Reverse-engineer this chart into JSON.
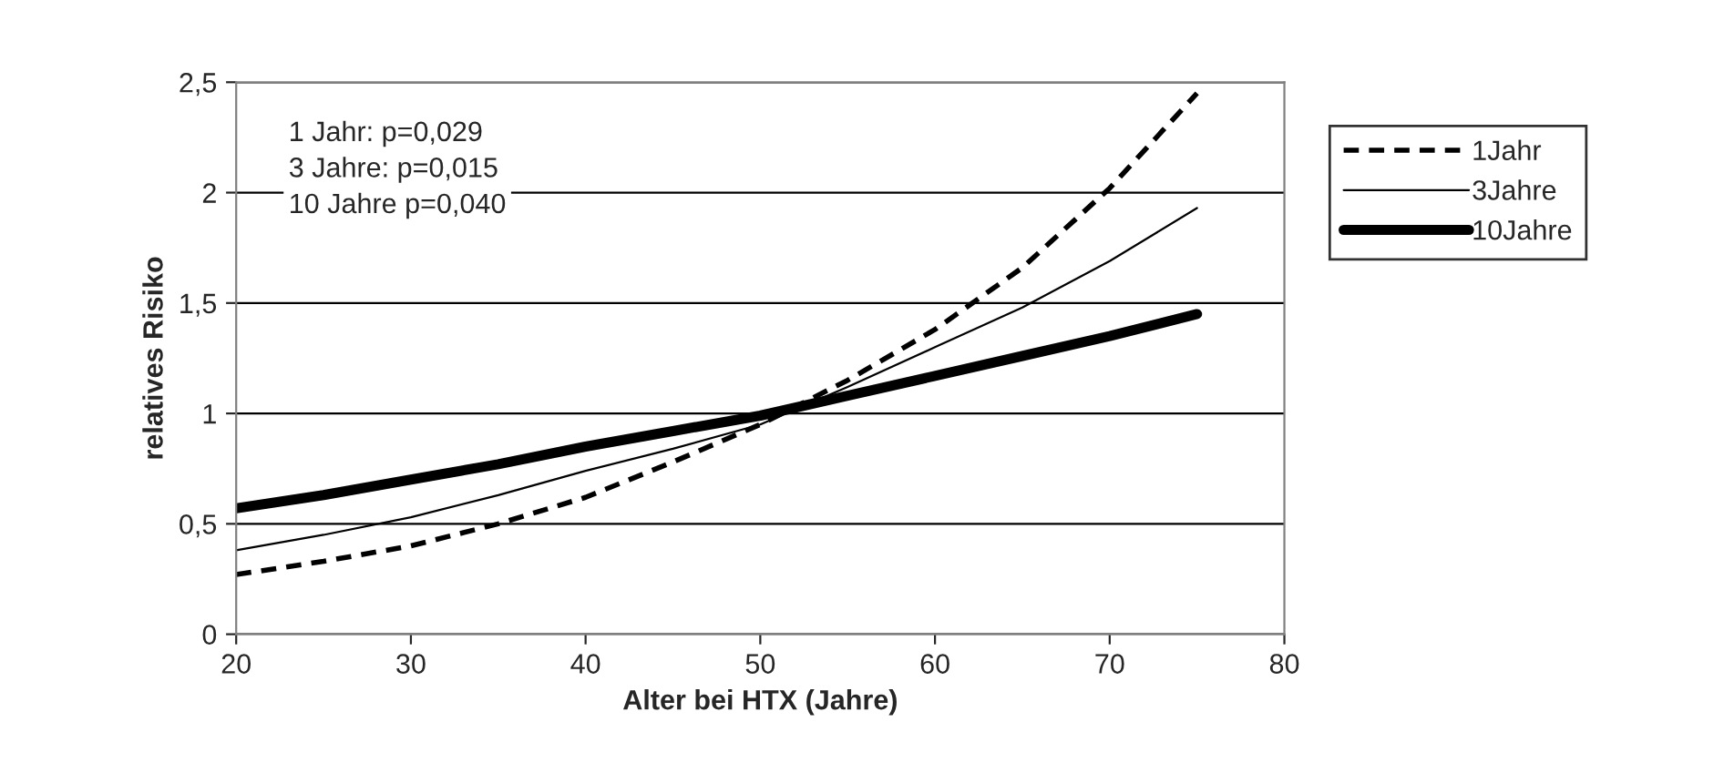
{
  "chart_data": {
    "type": "line",
    "xlabel": "Alter bei HTX (Jahre)",
    "ylabel": "relatives Risiko",
    "annotations": [
      "1 Jahr: p=0,029\n3 Jahre: p=0,015\n10 Jahre p=0,040"
    ],
    "x": [
      20,
      25,
      30,
      35,
      40,
      45,
      50,
      55,
      60,
      65,
      70,
      75
    ],
    "series": [
      {
        "name": "1Jahr",
        "color": "#000000",
        "line_style": "dashed",
        "values": [
          0.27,
          0.33,
          0.4,
          0.5,
          0.62,
          0.78,
          0.95,
          1.15,
          1.38,
          1.66,
          2.02,
          2.45
        ]
      },
      {
        "name": "3Jahre",
        "color": "#000000",
        "line_style": "solid",
        "values": [
          0.38,
          0.45,
          0.53,
          0.63,
          0.74,
          0.84,
          0.95,
          1.12,
          1.3,
          1.48,
          1.69,
          1.93
        ]
      },
      {
        "name": "10Jahre",
        "color": "#000000",
        "line_style": "solid",
        "values": [
          0.57,
          0.63,
          0.7,
          0.77,
          0.85,
          0.92,
          0.99,
          1.08,
          1.17,
          1.26,
          1.35,
          1.45
        ]
      }
    ],
    "xlim": [
      20,
      80
    ],
    "xticks": [
      20,
      30,
      40,
      50,
      60,
      70,
      80
    ],
    "ylim": [
      0,
      2.5
    ],
    "yticks": [
      0,
      {
        "value": 0.5,
        "label": "0,5"
      },
      1,
      {
        "value": 1.5,
        "label": "1,5"
      },
      2,
      {
        "value": 2.5,
        "label": "2,5"
      }
    ],
    "grid": "y",
    "legend": "right"
  }
}
